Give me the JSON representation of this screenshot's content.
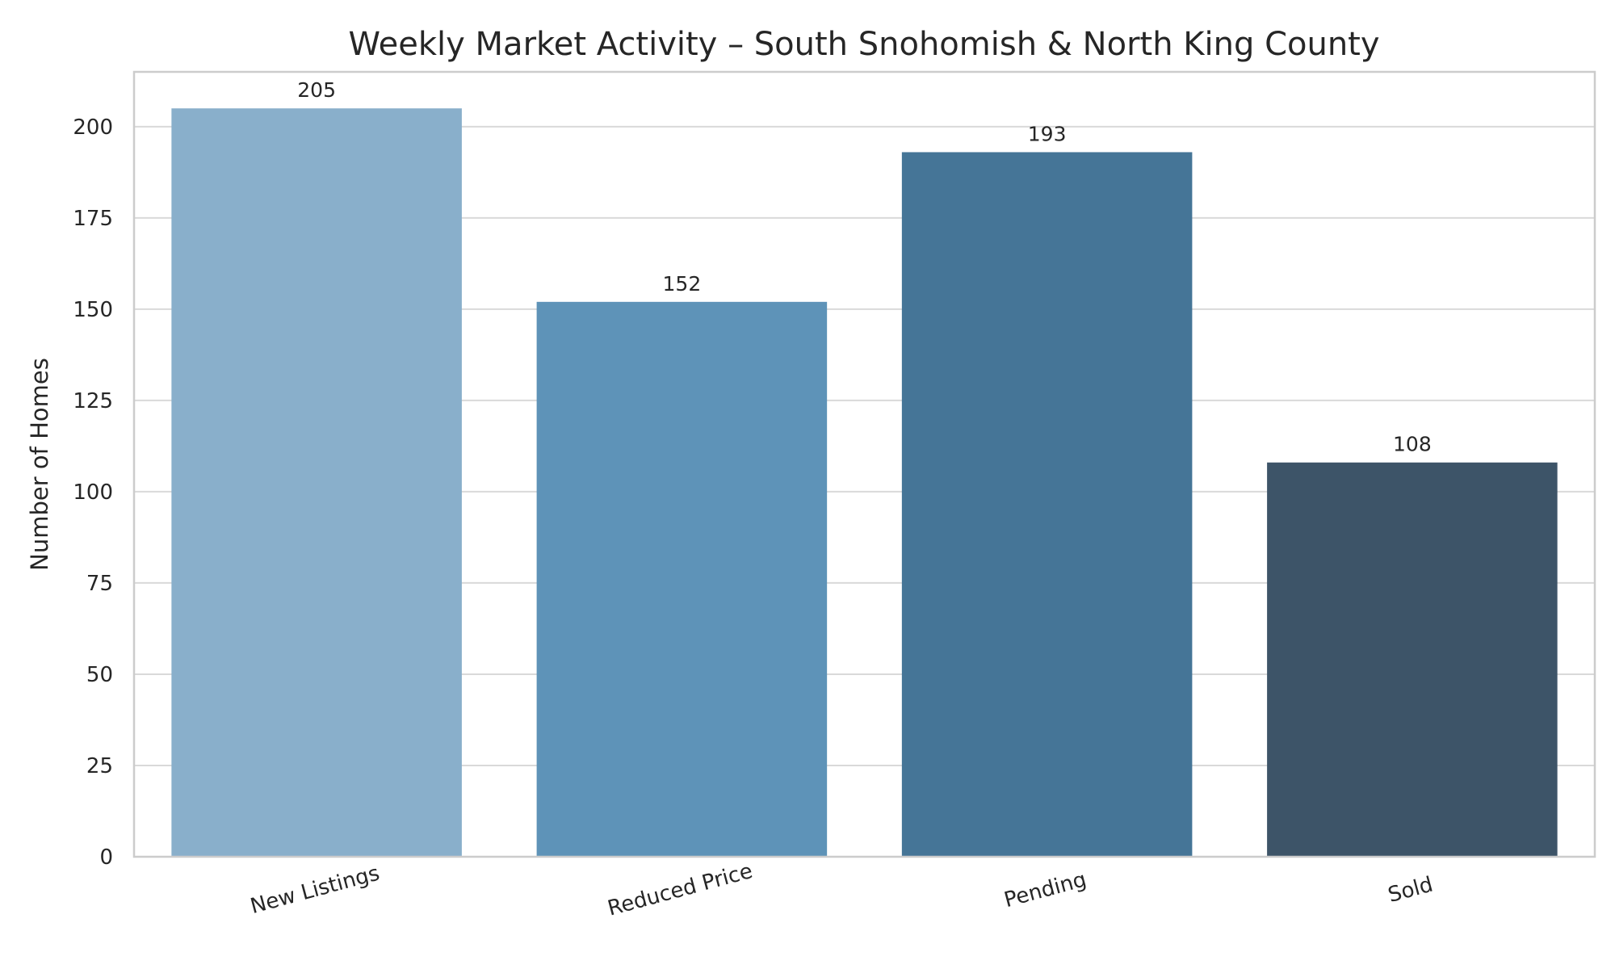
{
  "chart_data": {
    "type": "bar",
    "title": "Weekly Market Activity – South Snohomish & North King County",
    "xlabel": "",
    "ylabel": "Number of Homes",
    "categories": [
      "New Listings",
      "Reduced Price",
      "Pending",
      "Sold"
    ],
    "values": [
      205,
      152,
      193,
      108
    ],
    "data_labels": [
      "205",
      "152",
      "193",
      "108"
    ],
    "colors": [
      "#89afcb",
      "#5e93b8",
      "#457597",
      "#3d5468"
    ],
    "ylim": [
      0,
      215
    ],
    "yticks": [
      0,
      25,
      50,
      75,
      100,
      125,
      150,
      175,
      200
    ],
    "ytick_labels": [
      "0",
      "25",
      "50",
      "75",
      "100",
      "125",
      "150",
      "175",
      "200"
    ],
    "grid": "horizontal",
    "legend": "none",
    "xtick_rotation_deg": -15
  }
}
